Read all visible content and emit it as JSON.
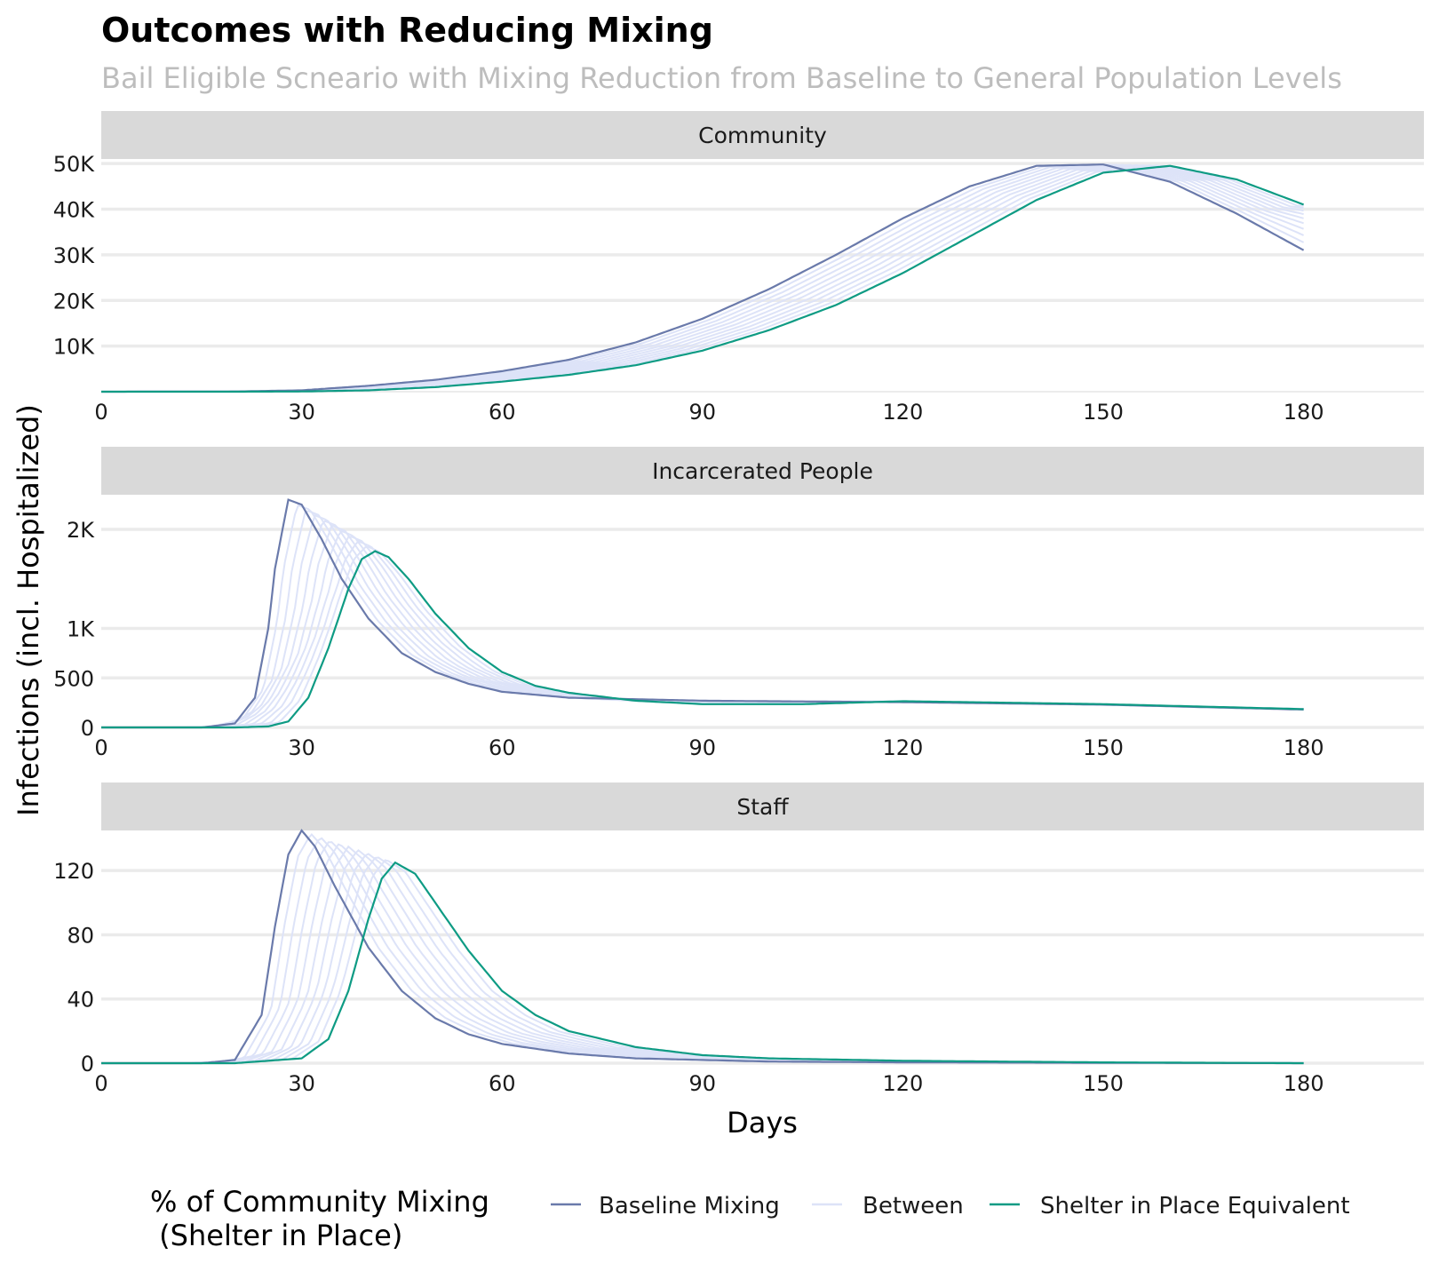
{
  "chart_data": {
    "type": "line",
    "title": "Outcomes with Reducing Mixing",
    "subtitle": "Bail Eligible Scneario with Mixing Reduction from Baseline to General Population Levels",
    "xlabel": "Days",
    "ylabel": "Infections (incl. Hospitalized)",
    "xlim": [
      0,
      198
    ],
    "x_ticks": [
      0,
      30,
      60,
      90,
      120,
      150,
      180
    ],
    "x_tick_labels": [
      "0",
      "30",
      "60",
      "90",
      "120",
      "150",
      "180"
    ],
    "grid": true,
    "legend": {
      "title_line1": "% of Community Mixing",
      "title_line2": " (Shelter in Place)",
      "position": "bottom",
      "entries": [
        {
          "label": "Baseline Mixing",
          "color": "#6a7aab"
        },
        {
          "label": "Between",
          "color": "#dde3f8"
        },
        {
          "label": "Shelter in Place Equivalent",
          "color": "#0e9b84"
        }
      ]
    },
    "scenario_count_between": 9,
    "panels": [
      {
        "strip": "Community",
        "ylim": [
          0,
          51000
        ],
        "y_ticks": [
          10000,
          20000,
          30000,
          40000,
          50000
        ],
        "y_tick_labels": [
          "10K",
          "20K",
          "30K",
          "40K",
          "50K"
        ],
        "series": [
          {
            "name": "Baseline Mixing",
            "x": [
              0,
              20,
              30,
              40,
              50,
              60,
              70,
              80,
              90,
              100,
              110,
              120,
              130,
              140,
              150,
              160,
              170,
              180
            ],
            "y": [
              0,
              50,
              300,
              1300,
              2600,
              4500,
              7000,
              10800,
              16000,
              22500,
              30000,
              38000,
              45000,
              49500,
              49800,
              46000,
              39000,
              31000
            ]
          },
          {
            "name": "Shelter in Place Equivalent",
            "x": [
              0,
              20,
              30,
              40,
              50,
              60,
              70,
              80,
              90,
              100,
              110,
              120,
              130,
              140,
              150,
              160,
              170,
              180
            ],
            "y": [
              0,
              0,
              50,
              300,
              1000,
              2200,
              3700,
              5800,
              9000,
              13500,
              19000,
              26000,
              34000,
              42000,
              48000,
              49500,
              46500,
              41000
            ]
          }
        ]
      },
      {
        "strip": "Incarcerated People",
        "ylim": [
          0,
          2350
        ],
        "y_ticks": [
          0,
          500,
          1000,
          2000
        ],
        "y_tick_labels": [
          "0",
          "500",
          "1K",
          "2K"
        ],
        "series": [
          {
            "name": "Baseline Mixing",
            "x": [
              0,
              15,
              20,
              23,
              25,
              26,
              28,
              30,
              33,
              36,
              40,
              45,
              50,
              55,
              60,
              70,
              90,
              120,
              150,
              180
            ],
            "y": [
              0,
              0,
              40,
              300,
              1000,
              1600,
              2300,
              2250,
              1900,
              1500,
              1100,
              750,
              560,
              440,
              360,
              300,
              270,
              255,
              230,
              180
            ]
          },
          {
            "name": "Shelter in Place Equivalent",
            "x": [
              0,
              20,
              25,
              28,
              31,
              34,
              37,
              39,
              41,
              43,
              46,
              50,
              55,
              60,
              65,
              70,
              80,
              90,
              105,
              120,
              150,
              180
            ],
            "y": [
              0,
              0,
              10,
              60,
              300,
              800,
              1400,
              1700,
              1780,
              1720,
              1500,
              1150,
              800,
              560,
              420,
              350,
              270,
              235,
              235,
              265,
              235,
              185
            ]
          }
        ]
      },
      {
        "strip": "Staff",
        "ylim": [
          0,
          145
        ],
        "y_ticks": [
          0,
          40,
          80,
          120
        ],
        "y_tick_labels": [
          "0",
          "40",
          "80",
          "120"
        ],
        "series": [
          {
            "name": "Baseline Mixing",
            "x": [
              0,
              15,
              20,
              24,
              26,
              28,
              30,
              32,
              35,
              40,
              45,
              50,
              55,
              60,
              70,
              80,
              90,
              100,
              120,
              150,
              180
            ],
            "y": [
              0,
              0,
              2,
              30,
              85,
              130,
              145,
              135,
              110,
              72,
              45,
              28,
              18,
              12,
              6,
              3,
              2,
              1,
              0.5,
              0.2,
              0
            ]
          },
          {
            "name": "Shelter in Place Equivalent",
            "x": [
              0,
              20,
              30,
              34,
              37,
              40,
              42,
              44,
              47,
              50,
              55,
              60,
              65,
              70,
              80,
              90,
              100,
              120,
              150,
              180
            ],
            "y": [
              0,
              0,
              3,
              15,
              45,
              90,
              115,
              125,
              118,
              100,
              70,
              45,
              30,
              20,
              10,
              5,
              3,
              1.5,
              0.5,
              0
            ]
          }
        ]
      }
    ]
  }
}
